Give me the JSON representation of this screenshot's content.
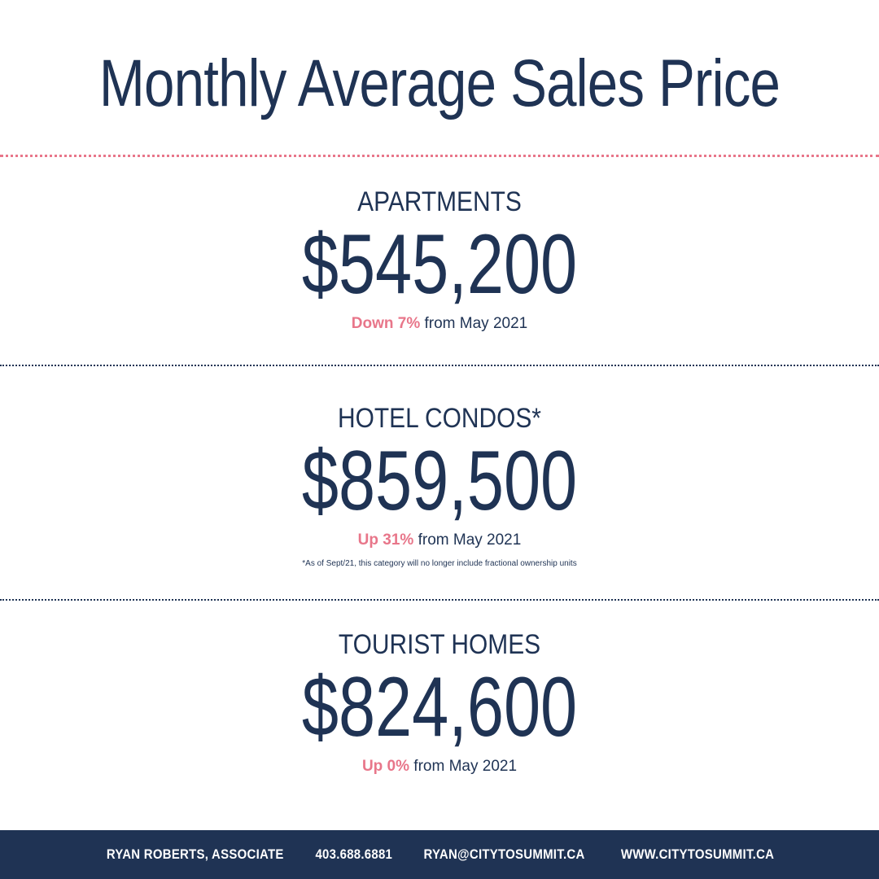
{
  "title": "Monthly Average Sales Price",
  "colors": {
    "navy": "#1f3354",
    "pink": "#e8768a",
    "background": "#ffffff"
  },
  "sections": [
    {
      "label": "APARTMENTS",
      "price": "$545,200",
      "change_highlight": "Down 7%",
      "change_rest": " from May 2021"
    },
    {
      "label": "HOTEL CONDOS*",
      "price": "$859,500",
      "change_highlight": "Up 31%",
      "change_rest": " from May 2021",
      "footnote": "*As of Sept/21, this category will no longer include fractional ownership units"
    },
    {
      "label": "TOURIST HOMES",
      "price": "$824,600",
      "change_highlight": "Up 0%",
      "change_rest": " from May 2021"
    }
  ],
  "footer": {
    "name": "RYAN ROBERTS, ASSOCIATE",
    "phone": "403.688.6881",
    "email": "RYAN@CITYTOSUMMIT.CA",
    "website": "WWW.CITYTOSUMMIT.CA"
  }
}
